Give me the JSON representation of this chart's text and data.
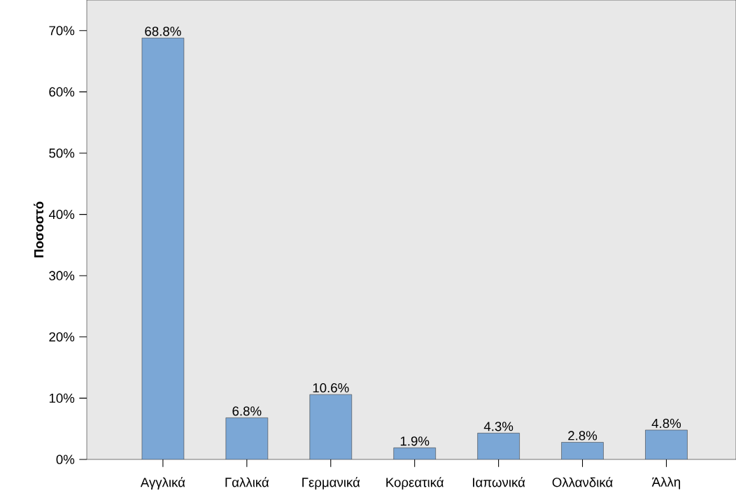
{
  "chart_data": {
    "type": "bar",
    "ylabel": "Ποσοστό",
    "categories": [
      "Αγγλικά",
      "Γαλλικά",
      "Γερμανικά",
      "Κορεατικά",
      "Ιαπωνικά",
      "Ολλανδικά",
      "Άλλη"
    ],
    "values": [
      68.8,
      6.8,
      10.6,
      1.9,
      4.3,
      2.8,
      4.8
    ],
    "value_labels": [
      "68.8%",
      "6.8%",
      "10.6%",
      "1.9%",
      "4.3%",
      "2.8%",
      "4.8%"
    ],
    "color": "#7ba7d6",
    "ylim": [
      0,
      75
    ],
    "yticks": [
      {
        "value": 0,
        "label": "0%"
      },
      {
        "value": 10,
        "label": "10%"
      },
      {
        "value": 20,
        "label": "20%"
      },
      {
        "value": 30,
        "label": "30%"
      },
      {
        "value": 40,
        "label": "40%"
      },
      {
        "value": 50,
        "label": "50%"
      },
      {
        "value": 60,
        "label": "60%"
      },
      {
        "value": 70,
        "label": "70%"
      }
    ],
    "grid": false
  }
}
